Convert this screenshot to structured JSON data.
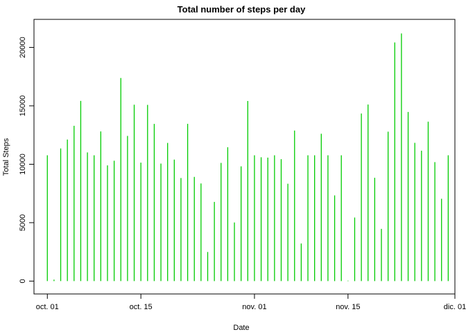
{
  "chart_data": {
    "type": "bar",
    "title": "Total number of steps per day",
    "xlabel": "Date",
    "ylabel": "Total Steps",
    "ylim": [
      -1100,
      22400
    ],
    "xlim": [
      "2012-09-29",
      "2012-12-01"
    ],
    "y_ticks": [
      0,
      5000,
      10000,
      15000,
      20000
    ],
    "x_ticks": [
      {
        "date": "2012-10-01",
        "label": "oct. 01"
      },
      {
        "date": "2012-10-15",
        "label": "oct. 15"
      },
      {
        "date": "2012-11-01",
        "label": "nov. 01"
      },
      {
        "date": "2012-11-15",
        "label": "nov. 15"
      },
      {
        "date": "2012-12-01",
        "label": "dic. 01"
      }
    ],
    "color": "#00cc00",
    "grid": false,
    "x": [
      "2012-10-01",
      "2012-10-02",
      "2012-10-03",
      "2012-10-04",
      "2012-10-05",
      "2012-10-06",
      "2012-10-07",
      "2012-10-08",
      "2012-10-09",
      "2012-10-10",
      "2012-10-11",
      "2012-10-12",
      "2012-10-13",
      "2012-10-14",
      "2012-10-15",
      "2012-10-16",
      "2012-10-17",
      "2012-10-18",
      "2012-10-19",
      "2012-10-20",
      "2012-10-21",
      "2012-10-22",
      "2012-10-23",
      "2012-10-24",
      "2012-10-25",
      "2012-10-26",
      "2012-10-27",
      "2012-10-28",
      "2012-10-29",
      "2012-10-30",
      "2012-10-31",
      "2012-11-01",
      "2012-11-02",
      "2012-11-03",
      "2012-11-04",
      "2012-11-05",
      "2012-11-06",
      "2012-11-07",
      "2012-11-08",
      "2012-11-09",
      "2012-11-10",
      "2012-11-11",
      "2012-11-12",
      "2012-11-13",
      "2012-11-14",
      "2012-11-15",
      "2012-11-16",
      "2012-11-17",
      "2012-11-18",
      "2012-11-19",
      "2012-11-20",
      "2012-11-21",
      "2012-11-22",
      "2012-11-23",
      "2012-11-24",
      "2012-11-25",
      "2012-11-26",
      "2012-11-27",
      "2012-11-28",
      "2012-11-29",
      "2012-11-30"
    ],
    "values": [
      10766,
      126,
      11352,
      12116,
      13294,
      15420,
      11015,
      10766,
      12811,
      9900,
      10304,
      17382,
      12426,
      15098,
      10139,
      15084,
      13452,
      10056,
      11829,
      10395,
      8821,
      13460,
      8918,
      8355,
      2492,
      6778,
      10119,
      11458,
      5018,
      9819,
      15414,
      10766,
      10600,
      10571,
      10766,
      10439,
      8334,
      12883,
      3219,
      10766,
      10766,
      12608,
      10765,
      7336,
      10766,
      41,
      5441,
      14339,
      15110,
      8841,
      4472,
      12787,
      20427,
      21194,
      14478,
      11834,
      11162,
      13646,
      10183,
      7047,
      10766
    ]
  }
}
